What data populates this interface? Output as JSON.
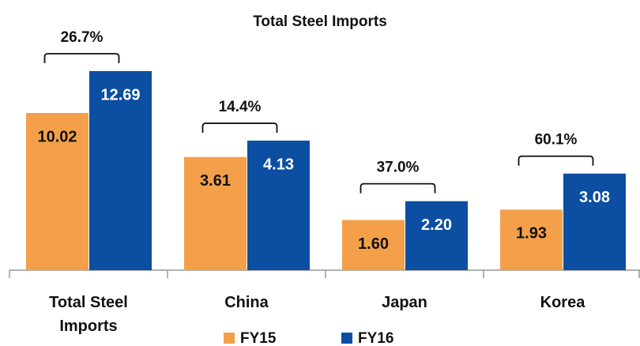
{
  "chart_data": {
    "type": "bar",
    "title": "Total Steel Imports",
    "categories": [
      "Total Steel Imports",
      "China",
      "Japan",
      "Korea"
    ],
    "series": [
      {
        "name": "FY15",
        "color": "#f4a04a",
        "values": [
          10.02,
          3.61,
          1.6,
          1.93
        ],
        "value_labels": [
          "10.02",
          "3.61",
          "1.60",
          "1.93"
        ]
      },
      {
        "name": "FY16",
        "color": "#0b4ea2",
        "values": [
          12.69,
          4.13,
          2.2,
          3.08
        ],
        "value_labels": [
          "12.69",
          "4.13",
          "2.20",
          "3.08"
        ]
      }
    ],
    "annotations": [
      "26.7%",
      "14.4%",
      "37.0%",
      "60.1%"
    ],
    "legend": "bottom"
  }
}
